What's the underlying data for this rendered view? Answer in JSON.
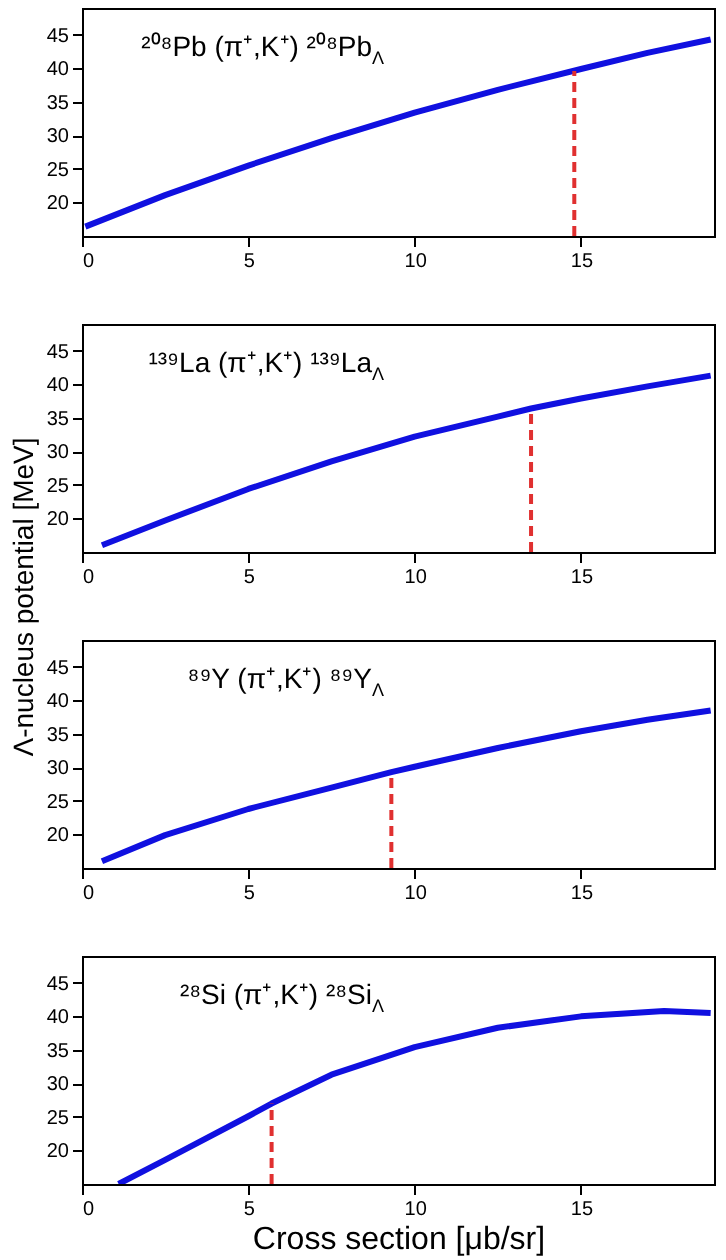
{
  "chart_data": [
    {
      "type": "line",
      "annotations": [
        "²⁰⁸Pb (π⁺,K⁺) ²⁰⁸Pb$_{Λ}$"
      ],
      "xlim": [
        0,
        19
      ],
      "xticks": [
        0,
        5,
        10,
        15
      ],
      "ylim": [
        15,
        49
      ],
      "yticks": [
        20,
        25,
        30,
        35,
        40,
        45
      ],
      "grid": false,
      "legend": false,
      "line_style": "solid",
      "marker": "none",
      "series": [
        {
          "color": "#1010e0",
          "x": [
            0.1,
            2.5,
            5,
            7.5,
            10,
            12.5,
            15,
            17,
            18.9
          ],
          "values": [
            16.4,
            21.1,
            25.5,
            29.6,
            33.4,
            36.8,
            39.9,
            42.3,
            44.3
          ]
        },
        {
          "color": "#e03030",
          "line_style": "dashed",
          "x": [
            14.8,
            14.8
          ],
          "values": [
            15,
            39.6
          ]
        }
      ]
    },
    {
      "type": "line",
      "ylabel": "Λ-nucleus potential [MeV]",
      "annotations": [
        "¹³⁹La (π⁺,K⁺) ¹³⁹La$_{Λ}$"
      ],
      "xlim": [
        0,
        19
      ],
      "xticks": [
        0,
        5,
        10,
        15
      ],
      "ylim": [
        15,
        49
      ],
      "yticks": [
        20,
        25,
        30,
        35,
        40,
        45
      ],
      "grid": false,
      "legend": false,
      "line_style": "solid",
      "marker": "none",
      "series": [
        {
          "color": "#1010e0",
          "x": [
            0.6,
            2.5,
            5,
            7.5,
            10,
            12.5,
            13.5,
            15,
            17,
            18.9
          ],
          "values": [
            16.0,
            19.7,
            24.4,
            28.5,
            32.2,
            35.2,
            36.4,
            37.9,
            39.7,
            41.3
          ]
        },
        {
          "color": "#e03030",
          "line_style": "dashed",
          "x": [
            13.5,
            13.5
          ],
          "values": [
            15,
            36.4
          ]
        }
      ]
    },
    {
      "type": "line",
      "annotations": [
        "⁸⁹Y (π⁺,K⁺) ⁸⁹Y$_{Λ}$"
      ],
      "xlim": [
        0,
        19
      ],
      "xticks": [
        0,
        5,
        10,
        15
      ],
      "ylim": [
        15,
        49
      ],
      "yticks": [
        20,
        25,
        30,
        35,
        40,
        45
      ],
      "grid": false,
      "legend": false,
      "line_style": "solid",
      "marker": "none",
      "series": [
        {
          "color": "#1010e0",
          "x": [
            0.6,
            2.5,
            5,
            7.5,
            9.3,
            10,
            12.5,
            15,
            17,
            18.9
          ],
          "values": [
            16.0,
            19.9,
            23.8,
            27.0,
            29.3,
            30.1,
            32.9,
            35.4,
            37.1,
            38.5
          ]
        },
        {
          "color": "#e03030",
          "line_style": "dashed",
          "x": [
            9.3,
            9.3
          ],
          "values": [
            15,
            29.3
          ]
        }
      ]
    },
    {
      "type": "line",
      "xlabel": "Cross section [μb/sr]",
      "annotations": [
        "²⁸Si (π⁺,K⁺) ²⁸Si$_{Λ}$"
      ],
      "xlim": [
        0,
        19
      ],
      "xticks": [
        0,
        5,
        10,
        15
      ],
      "ylim": [
        15,
        49
      ],
      "yticks": [
        20,
        25,
        30,
        35,
        40,
        45
      ],
      "grid": false,
      "legend": false,
      "line_style": "solid",
      "marker": "none",
      "series": [
        {
          "color": "#1010e0",
          "x": [
            1.1,
            2.5,
            5,
            5.7,
            7.5,
            10,
            12.5,
            15,
            17.5,
            18.9
          ],
          "values": [
            15.0,
            18.6,
            25.1,
            27.0,
            31.3,
            35.4,
            38.3,
            40.0,
            40.8,
            40.5
          ]
        },
        {
          "color": "#e03030",
          "line_style": "dashed",
          "x": [
            5.7,
            5.7
          ],
          "values": [
            15,
            27.0
          ]
        }
      ]
    }
  ]
}
